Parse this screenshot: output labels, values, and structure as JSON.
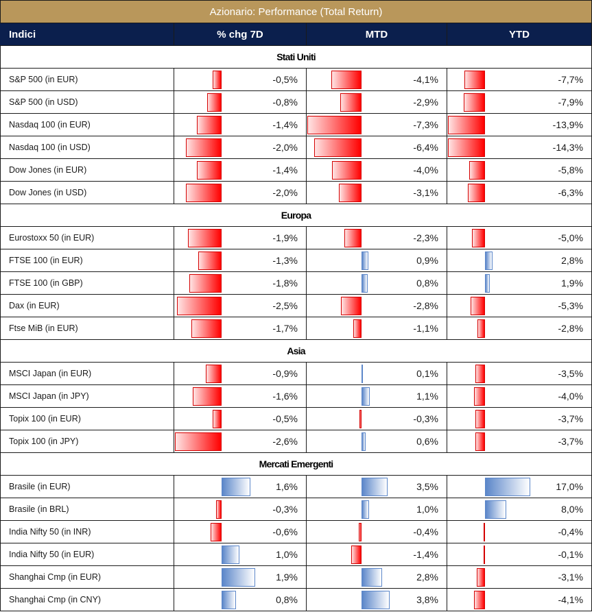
{
  "title": "Azionario: Performance (Total Return)",
  "columns": [
    "Indici",
    "% chg 7D",
    "MTD",
    "YTD"
  ],
  "colors": {
    "title_bg": "#b9975b",
    "header_bg": "#0b1f4d",
    "neg_bar": "#ff0000",
    "pos_bar": "#5b86c9"
  },
  "sections": [
    {
      "name": "Stati Uniti",
      "rows": [
        {
          "name": "S&P 500 (in EUR)",
          "d7": "-0,5%",
          "mtd": "-4,1%",
          "ytd": "-7,7%"
        },
        {
          "name": "S&P 500 (in USD)",
          "d7": "-0,8%",
          "mtd": "-2,9%",
          "ytd": "-7,9%"
        },
        {
          "name": "Nasdaq 100 (in EUR)",
          "d7": "-1,4%",
          "mtd": "-7,3%",
          "ytd": "-13,9%"
        },
        {
          "name": "Nasdaq 100 (in USD)",
          "d7": "-2,0%",
          "mtd": "-6,4%",
          "ytd": "-14,3%"
        },
        {
          "name": "Dow Jones (in EUR)",
          "d7": "-1,4%",
          "mtd": "-4,0%",
          "ytd": "-5,8%"
        },
        {
          "name": "Dow Jones (in USD)",
          "d7": "-2,0%",
          "mtd": "-3,1%",
          "ytd": "-6,3%"
        }
      ]
    },
    {
      "name": "Europa",
      "rows": [
        {
          "name": "Eurostoxx 50 (in EUR)",
          "d7": "-1,9%",
          "mtd": "-2,3%",
          "ytd": "-5,0%"
        },
        {
          "name": "FTSE 100 (in EUR)",
          "d7": "-1,3%",
          "mtd": "0,9%",
          "ytd": "2,8%"
        },
        {
          "name": "FTSE 100 (in GBP)",
          "d7": "-1,8%",
          "mtd": "0,8%",
          "ytd": "1,9%"
        },
        {
          "name": "Dax (in EUR)",
          "d7": "-2,5%",
          "mtd": "-2,8%",
          "ytd": "-5,3%"
        },
        {
          "name": "Ftse MiB (in EUR)",
          "d7": "-1,7%",
          "mtd": "-1,1%",
          "ytd": "-2,8%"
        }
      ]
    },
    {
      "name": "Asia",
      "rows": [
        {
          "name": "MSCI Japan (in EUR)",
          "d7": "-0,9%",
          "mtd": "0,1%",
          "ytd": "-3,5%"
        },
        {
          "name": "MSCI Japan (in JPY)",
          "d7": "-1,6%",
          "mtd": "1,1%",
          "ytd": "-4,0%"
        },
        {
          "name": "Topix 100 (in EUR)",
          "d7": "-0,5%",
          "mtd": "-0,3%",
          "ytd": "-3,7%"
        },
        {
          "name": "Topix 100 (in JPY)",
          "d7": "-2,6%",
          "mtd": "0,6%",
          "ytd": "-3,7%"
        }
      ]
    },
    {
      "name": "Mercati Emergenti",
      "rows": [
        {
          "name": "Brasile (in EUR)",
          "d7": "1,6%",
          "mtd": "3,5%",
          "ytd": "17,0%"
        },
        {
          "name": "Brasile (in BRL)",
          "d7": "-0,3%",
          "mtd": "1,0%",
          "ytd": "8,0%"
        },
        {
          "name": "India Nifty 50 (in INR)",
          "d7": "-0,6%",
          "mtd": "-0,4%",
          "ytd": "-0,4%"
        },
        {
          "name": "India Nifty 50 (in EUR)",
          "d7": "1,0%",
          "mtd": "-1,4%",
          "ytd": "-0,1%"
        },
        {
          "name": "Shanghai Cmp (in EUR)",
          "d7": "1,9%",
          "mtd": "2,8%",
          "ytd": "-3,1%"
        },
        {
          "name": "Shanghai Cmp (in CNY)",
          "d7": "0,8%",
          "mtd": "3,8%",
          "ytd": "-4,1%"
        }
      ]
    }
  ]
}
